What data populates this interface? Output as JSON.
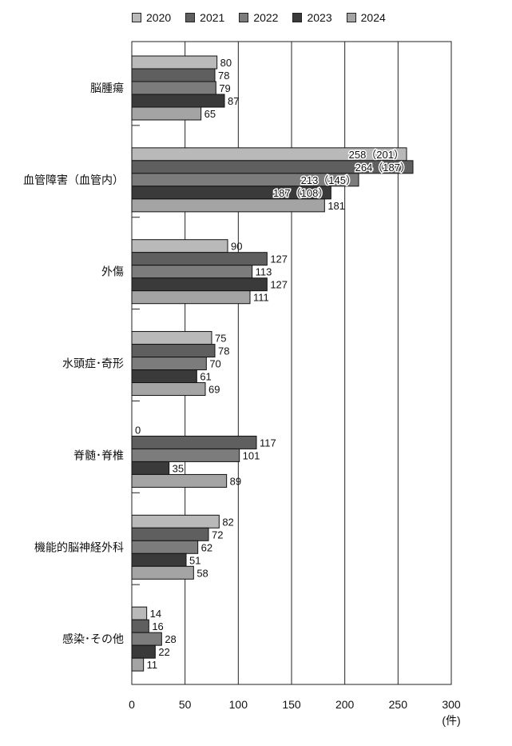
{
  "chart_data": {
    "type": "bar",
    "orientation": "horizontal",
    "xlabel": "",
    "ylabel": "",
    "xlim": [
      0,
      300
    ],
    "x_ticks": [
      "0",
      "50",
      "100",
      "150",
      "200",
      "250",
      "300"
    ],
    "unit": "(件)",
    "grid": true,
    "legend_position": "top",
    "categories": [
      "脳腫瘍",
      "血管障害（血管内）",
      "外傷",
      "水頭症･奇形",
      "脊髄･脊椎",
      "機能的脳神経外科",
      "感染･その他"
    ],
    "series": [
      {
        "name": "2020",
        "color": "#b9b9b9",
        "values": [
          80,
          258,
          90,
          75,
          0,
          82,
          14
        ],
        "labels": [
          "80",
          "258（201）",
          "90",
          "75",
          "0",
          "82",
          "14"
        ]
      },
      {
        "name": "2021",
        "color": "#5f5f5f",
        "values": [
          78,
          264,
          127,
          78,
          117,
          72,
          16
        ],
        "labels": [
          "78",
          "264（187）",
          "127",
          "78",
          "117",
          "72",
          "16"
        ]
      },
      {
        "name": "2022",
        "color": "#7c7c7c",
        "values": [
          79,
          213,
          113,
          70,
          101,
          62,
          28
        ],
        "labels": [
          "79",
          "213（145）",
          "113",
          "70",
          "101",
          "62",
          "28"
        ]
      },
      {
        "name": "2023",
        "color": "#3a3a3a",
        "values": [
          87,
          187,
          127,
          61,
          35,
          51,
          22
        ],
        "labels": [
          "87",
          "187（108）",
          "127",
          "61",
          "35",
          "51",
          "22"
        ]
      },
      {
        "name": "2024",
        "color": "#a4a4a4",
        "values": [
          65,
          181,
          111,
          69,
          89,
          58,
          11
        ],
        "labels": [
          "65",
          "181",
          "111",
          "69",
          "89",
          "58",
          "11"
        ]
      }
    ]
  }
}
